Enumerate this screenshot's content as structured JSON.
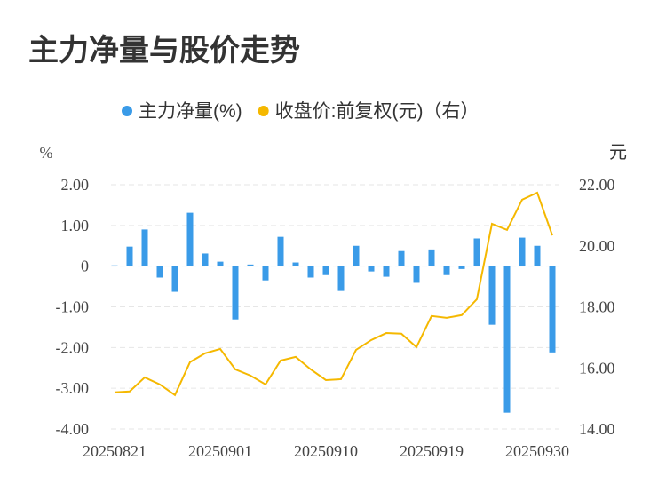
{
  "chart_data": {
    "type": "bar-line",
    "title": "主力净量与股价走势",
    "y_label": "%",
    "y2_label": "元",
    "categories": [
      "20250821",
      null,
      null,
      null,
      null,
      null,
      null,
      "20250901",
      null,
      null,
      null,
      null,
      null,
      null,
      "20250910",
      null,
      null,
      null,
      null,
      null,
      null,
      "20250919",
      null,
      null,
      null,
      null,
      null,
      null,
      "20250930",
      null
    ],
    "series": [
      {
        "name": "主力净量(%)",
        "color": "#3a9be8",
        "type": "bar",
        "values": [
          0.02,
          0.48,
          0.9,
          -0.28,
          -0.63,
          1.31,
          0.31,
          0.11,
          -1.31,
          0.04,
          -0.35,
          0.72,
          0.09,
          -0.28,
          -0.22,
          -0.61,
          0.5,
          -0.13,
          -0.26,
          0.37,
          -0.41,
          0.41,
          -0.22,
          -0.07,
          0.68,
          -1.44,
          -3.6,
          0.7,
          0.5,
          -2.12
        ]
      },
      {
        "name": "收盘价:前复权(元)（右）",
        "color": "#f5b800",
        "type": "line",
        "axis": "y2",
        "values": [
          15.2,
          15.23,
          15.69,
          15.46,
          15.11,
          16.19,
          16.48,
          16.62,
          15.95,
          15.75,
          15.46,
          16.24,
          16.36,
          15.95,
          15.6,
          15.63,
          16.59,
          16.91,
          17.14,
          17.12,
          16.68,
          17.7,
          17.64,
          17.73,
          18.25,
          20.72,
          20.52,
          21.51,
          21.74,
          20.34
        ]
      }
    ],
    "ylim": [
      -4,
      2
    ],
    "yticks": [
      {
        "value": -4,
        "label": "-4.00"
      },
      {
        "value": -3,
        "label": "-3.00"
      },
      {
        "value": -2,
        "label": "-2.00"
      },
      {
        "value": -1,
        "label": "-1.00"
      },
      0,
      {
        "value": 1,
        "label": "1.00"
      },
      {
        "value": 2,
        "label": "2.00"
      }
    ],
    "y2lim": [
      14,
      22
    ],
    "y2ticks": [
      {
        "value": 14,
        "label": "14.00"
      },
      {
        "value": 16,
        "label": "16.00"
      },
      {
        "value": 18,
        "label": "18.00"
      },
      {
        "value": 20,
        "label": "20.00"
      },
      {
        "value": 22,
        "label": "22.00"
      }
    ],
    "grid": true
  }
}
